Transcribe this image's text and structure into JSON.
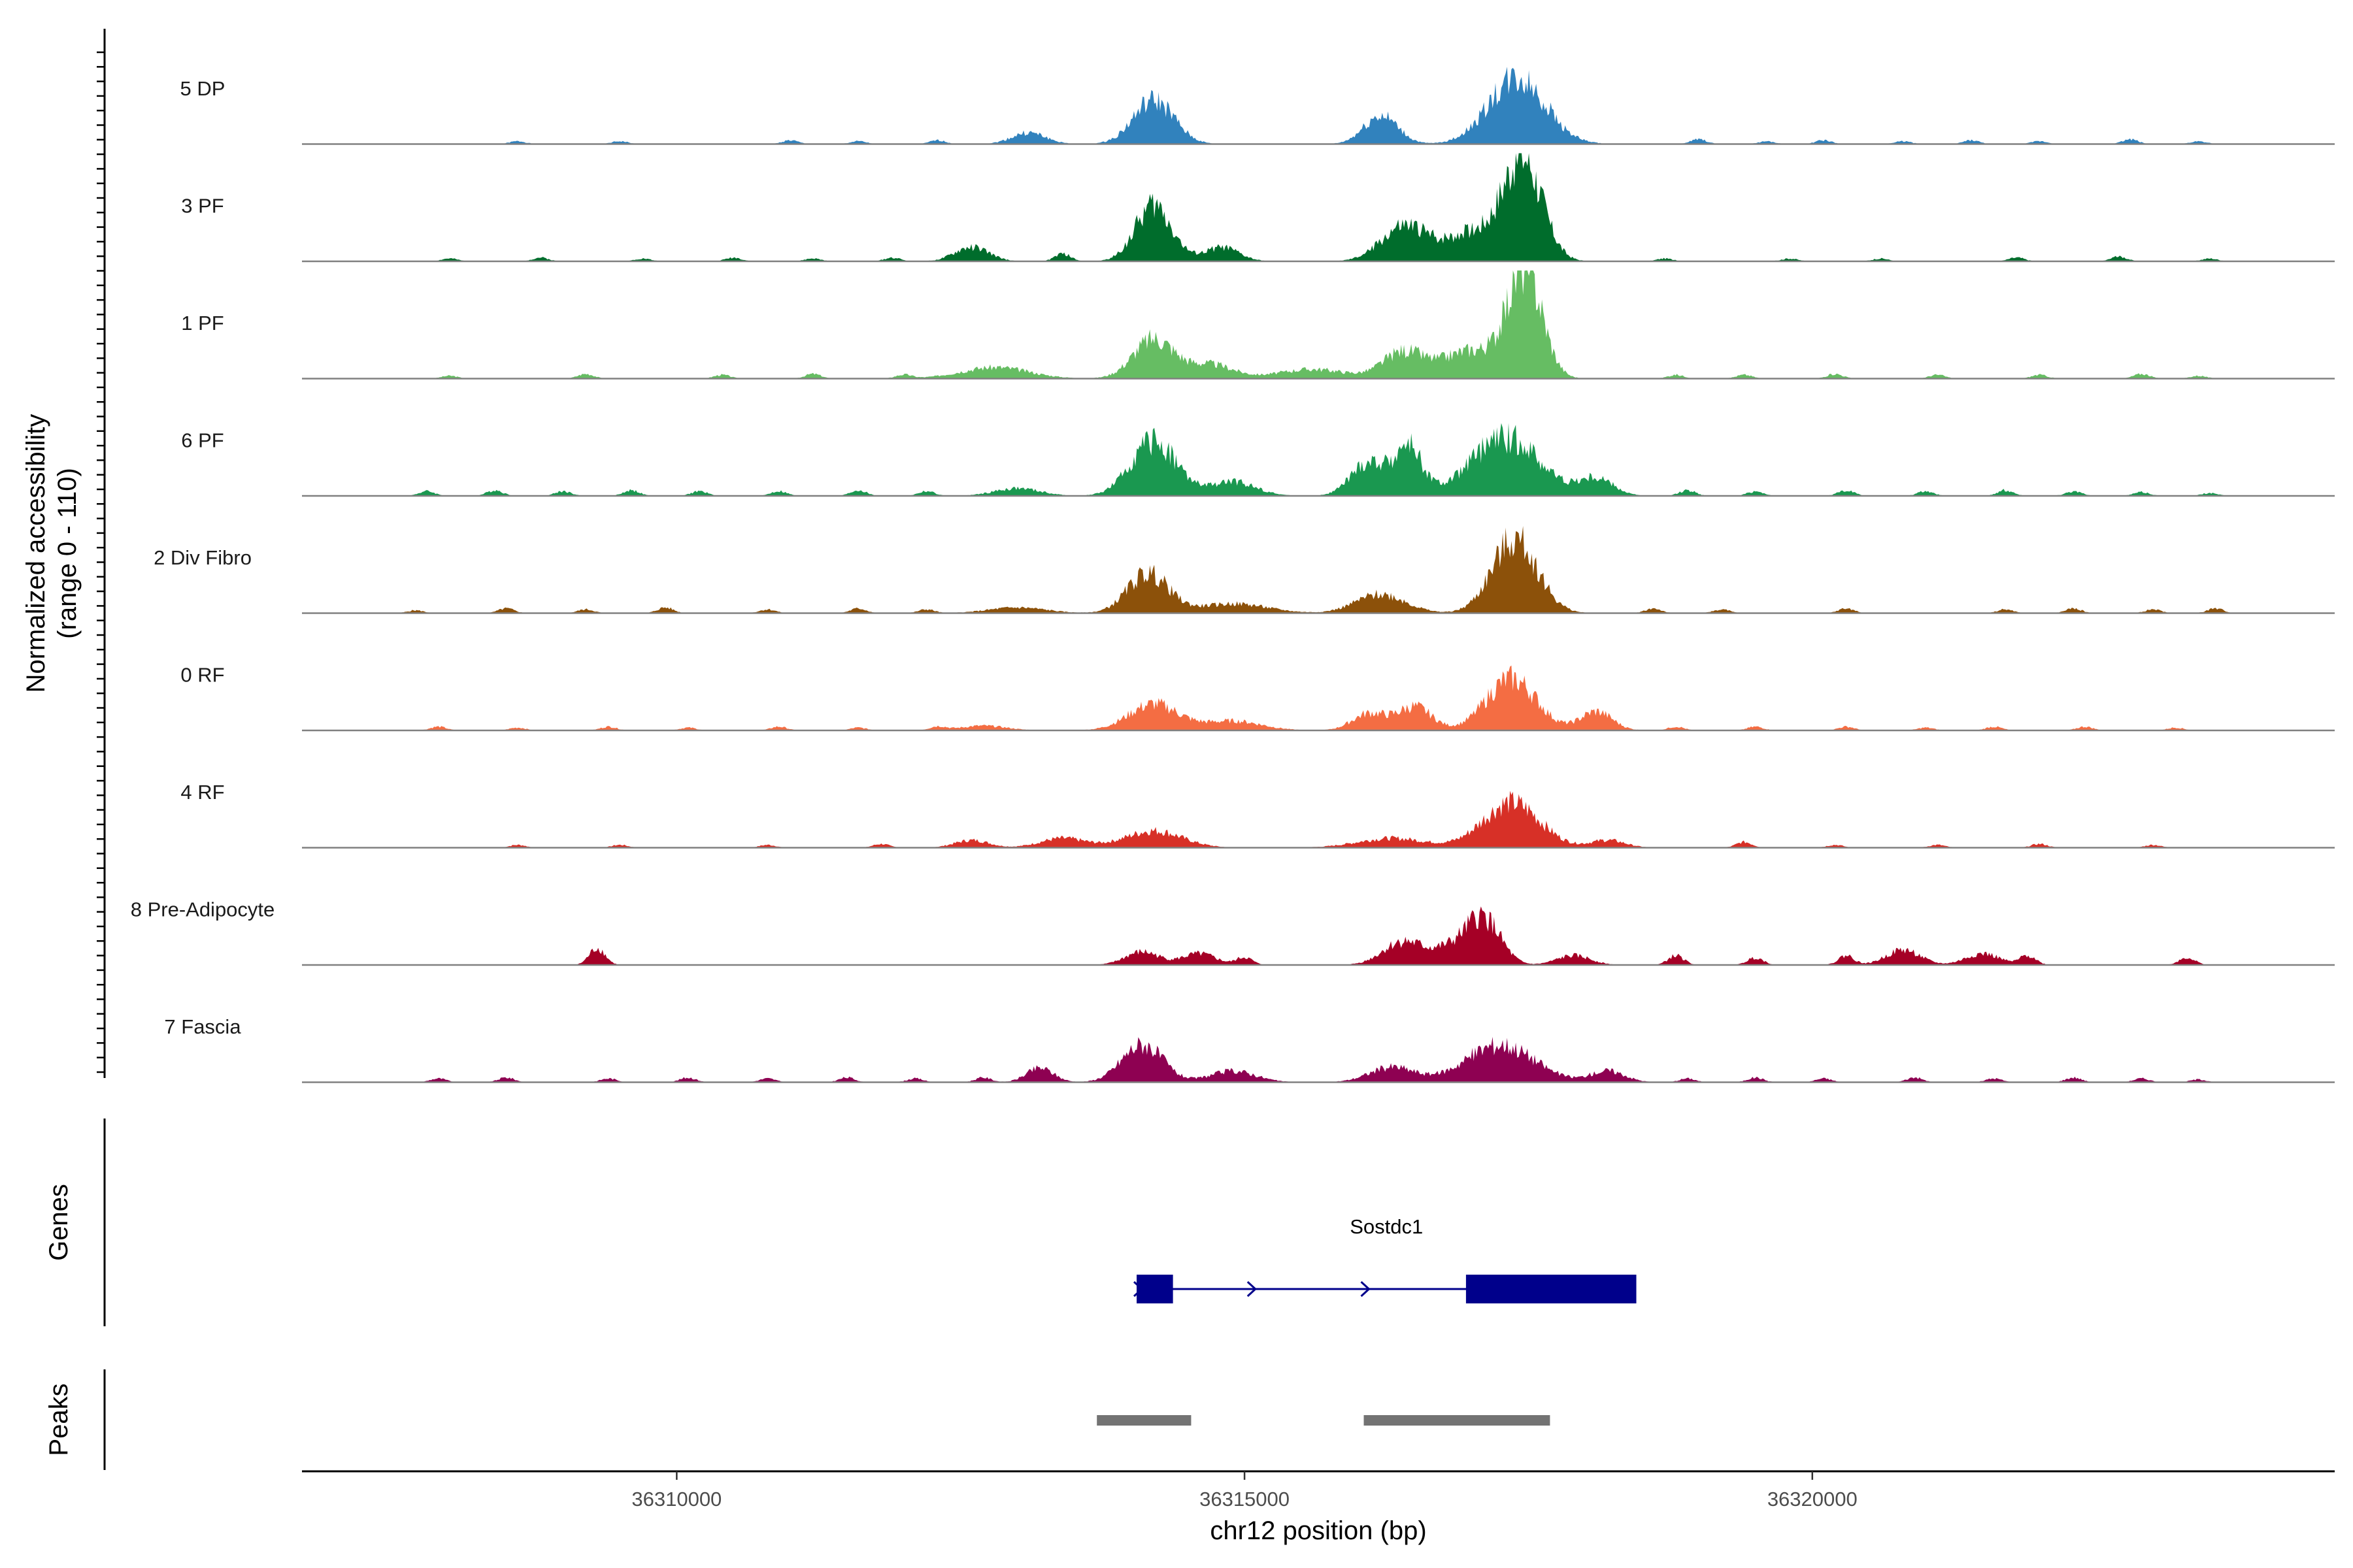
{
  "chart_data": {
    "type": "area",
    "title": "",
    "ylabel": "Normalized accessibility (range 0 - 110)",
    "ylabel_lines": [
      "Normalized accessibility",
      "(range 0 - 110)"
    ],
    "ylim": [
      0,
      110
    ],
    "xlabel": "chr12 position (bp)",
    "xlim": [
      36306700,
      36324600
    ],
    "x_ticks": [
      36310000,
      36315000,
      36320000
    ],
    "x_tick_labels": [
      "36310000",
      "36315000",
      "36320000"
    ],
    "tracks": [
      {
        "name": "5 DP",
        "color": "#3182BD",
        "peaks": [
          [
            36314200,
            46,
            180
          ],
          [
            36317400,
            70,
            250
          ],
          [
            36316200,
            30,
            150
          ],
          [
            36313100,
            12,
            150
          ]
        ],
        "sparse": [
          [
            36308600,
            3
          ],
          [
            36309500,
            3
          ],
          [
            36311000,
            4
          ],
          [
            36311600,
            3
          ],
          [
            36312300,
            4
          ],
          [
            36319000,
            5
          ],
          [
            36319600,
            3
          ],
          [
            36320100,
            4
          ],
          [
            36320800,
            3
          ],
          [
            36321400,
            4
          ],
          [
            36322000,
            3
          ],
          [
            36322800,
            5
          ],
          [
            36323400,
            3
          ]
        ]
      },
      {
        "name": "3 PF",
        "color": "#006D2C",
        "peaks": [
          [
            36314200,
            60,
            160
          ],
          [
            36317450,
            108,
            170
          ],
          [
            36317000,
            30,
            250
          ],
          [
            36316400,
            36,
            200
          ],
          [
            36314800,
            15,
            150
          ],
          [
            36312600,
            15,
            150
          ]
        ],
        "sparse": [
          [
            36308000,
            3
          ],
          [
            36308800,
            4
          ],
          [
            36309700,
            3
          ],
          [
            36310500,
            4
          ],
          [
            36311200,
            3
          ],
          [
            36311900,
            4
          ],
          [
            36313400,
            8
          ],
          [
            36318700,
            3
          ],
          [
            36319800,
            3
          ],
          [
            36320600,
            3
          ],
          [
            36321800,
            4
          ],
          [
            36322700,
            5
          ],
          [
            36323500,
            3
          ]
        ]
      },
      {
        "name": "1 PF",
        "color": "#66BD63",
        "peaks": [
          [
            36314200,
            42,
            180
          ],
          [
            36317470,
            115,
            150
          ],
          [
            36317000,
            30,
            250
          ],
          [
            36316400,
            28,
            180
          ],
          [
            36314700,
            15,
            200
          ],
          [
            36312800,
            12,
            300
          ],
          [
            36315600,
            10,
            300
          ]
        ],
        "sparse": [
          [
            36308000,
            3
          ],
          [
            36309200,
            5
          ],
          [
            36310400,
            4
          ],
          [
            36311200,
            5
          ],
          [
            36312000,
            4
          ],
          [
            36318800,
            4
          ],
          [
            36319400,
            4
          ],
          [
            36320200,
            5
          ],
          [
            36321100,
            4
          ],
          [
            36322000,
            4
          ],
          [
            36322900,
            5
          ],
          [
            36323400,
            3
          ]
        ]
      },
      {
        "name": "6 PF",
        "color": "#1A9850",
        "peaks": [
          [
            36314200,
            58,
            200
          ],
          [
            36317300,
            62,
            300
          ],
          [
            36316450,
            50,
            120
          ],
          [
            36316100,
            35,
            160
          ],
          [
            36314900,
            15,
            200
          ],
          [
            36318100,
            18,
            150
          ],
          [
            36313000,
            8,
            200
          ]
        ],
        "sparse": [
          [
            36307800,
            5
          ],
          [
            36308400,
            6
          ],
          [
            36309000,
            5
          ],
          [
            36309600,
            6
          ],
          [
            36310200,
            5
          ],
          [
            36310900,
            5
          ],
          [
            36311600,
            6
          ],
          [
            36312200,
            5
          ],
          [
            36318900,
            6
          ],
          [
            36319500,
            5
          ],
          [
            36320300,
            6
          ],
          [
            36321000,
            5
          ],
          [
            36321700,
            6
          ],
          [
            36322300,
            5
          ],
          [
            36322900,
            4
          ],
          [
            36323500,
            3
          ]
        ]
      },
      {
        "name": "2 Div Fibro",
        "color": "#8C510A",
        "peaks": [
          [
            36314150,
            42,
            180
          ],
          [
            36317380,
            78,
            200
          ],
          [
            36316200,
            20,
            220
          ],
          [
            36314900,
            10,
            300
          ],
          [
            36313000,
            6,
            250
          ]
        ],
        "sparse": [
          [
            36307700,
            3
          ],
          [
            36308500,
            5
          ],
          [
            36309200,
            4
          ],
          [
            36309900,
            6
          ],
          [
            36310800,
            4
          ],
          [
            36311600,
            5
          ],
          [
            36312200,
            4
          ],
          [
            36318600,
            5
          ],
          [
            36319200,
            4
          ],
          [
            36320300,
            5
          ],
          [
            36321700,
            4
          ],
          [
            36322300,
            5
          ],
          [
            36323000,
            4
          ],
          [
            36323550,
            5
          ]
        ]
      },
      {
        "name": "0 RF",
        "color": "#F46D43",
        "peaks": [
          [
            36314200,
            28,
            220
          ],
          [
            36317350,
            55,
            220
          ],
          [
            36316500,
            25,
            150
          ],
          [
            36316100,
            18,
            150
          ],
          [
            36318100,
            20,
            140
          ],
          [
            36314900,
            10,
            250
          ],
          [
            36312700,
            5,
            200
          ]
        ],
        "sparse": [
          [
            36307900,
            4
          ],
          [
            36308600,
            3
          ],
          [
            36309400,
            4
          ],
          [
            36310100,
            3
          ],
          [
            36310900,
            4
          ],
          [
            36311600,
            3
          ],
          [
            36312300,
            4
          ],
          [
            36318800,
            4
          ],
          [
            36319500,
            4
          ],
          [
            36320300,
            4
          ],
          [
            36321000,
            3
          ],
          [
            36321600,
            4
          ],
          [
            36322400,
            4
          ],
          [
            36323200,
            3
          ]
        ]
      },
      {
        "name": "4 RF",
        "color": "#D73027",
        "peaks": [
          [
            36314200,
            18,
            250
          ],
          [
            36317350,
            48,
            250
          ],
          [
            36316300,
            10,
            300
          ],
          [
            36312600,
            8,
            150
          ],
          [
            36313400,
            10,
            200
          ],
          [
            36318200,
            8,
            150
          ]
        ],
        "sparse": [
          [
            36308600,
            3
          ],
          [
            36309500,
            3
          ],
          [
            36310800,
            3
          ],
          [
            36311800,
            4
          ],
          [
            36319400,
            6
          ],
          [
            36320200,
            3
          ],
          [
            36321100,
            3
          ],
          [
            36322000,
            4
          ],
          [
            36323000,
            3
          ]
        ]
      },
      {
        "name": "8 Pre-Adipocyte",
        "color": "#A50026",
        "peaks": [
          [
            36317100,
            50,
            150
          ],
          [
            36316400,
            25,
            180
          ],
          [
            36316800,
            15,
            150
          ],
          [
            36314100,
            14,
            150
          ],
          [
            36314600,
            12,
            150
          ],
          [
            36317900,
            10,
            150
          ],
          [
            36320800,
            16,
            150
          ],
          [
            36321500,
            12,
            150
          ]
        ],
        "sparse": [
          [
            36309300,
            18
          ],
          [
            36315000,
            8
          ],
          [
            36318800,
            10
          ],
          [
            36319500,
            8
          ],
          [
            36320300,
            10
          ],
          [
            36321900,
            10
          ],
          [
            36323300,
            8
          ]
        ]
      },
      {
        "name": "7 Fascia",
        "color": "#8E0152",
        "peaks": [
          [
            36314100,
            40,
            180
          ],
          [
            36317250,
            40,
            300
          ],
          [
            36316300,
            16,
            200
          ],
          [
            36313200,
            15,
            120
          ],
          [
            36314900,
            12,
            200
          ],
          [
            36318200,
            12,
            150
          ]
        ],
        "sparse": [
          [
            36307900,
            4
          ],
          [
            36308500,
            5
          ],
          [
            36309400,
            4
          ],
          [
            36310100,
            5
          ],
          [
            36310800,
            4
          ],
          [
            36311500,
            5
          ],
          [
            36312100,
            4
          ],
          [
            36312700,
            5
          ],
          [
            36318900,
            4
          ],
          [
            36319500,
            5
          ],
          [
            36320100,
            4
          ],
          [
            36320900,
            5
          ],
          [
            36321600,
            4
          ],
          [
            36322300,
            5
          ],
          [
            36322900,
            4
          ],
          [
            36323400,
            3
          ]
        ]
      }
    ],
    "gene": {
      "name": "Sostdc1",
      "color": "#00008B",
      "strand": "+",
      "start": 36314050,
      "end": 36318450,
      "exons": [
        [
          36314050,
          36314370
        ],
        [
          36316950,
          36318450
        ]
      ],
      "arrows": [
        36314050,
        36315050,
        36316050
      ]
    },
    "peak_regions": {
      "color": "#737373",
      "ranges": [
        [
          36313700,
          36314530
        ],
        [
          36316050,
          36317690
        ]
      ]
    },
    "panel_titles": {
      "genes": "Genes",
      "peaks": "Peaks"
    }
  }
}
